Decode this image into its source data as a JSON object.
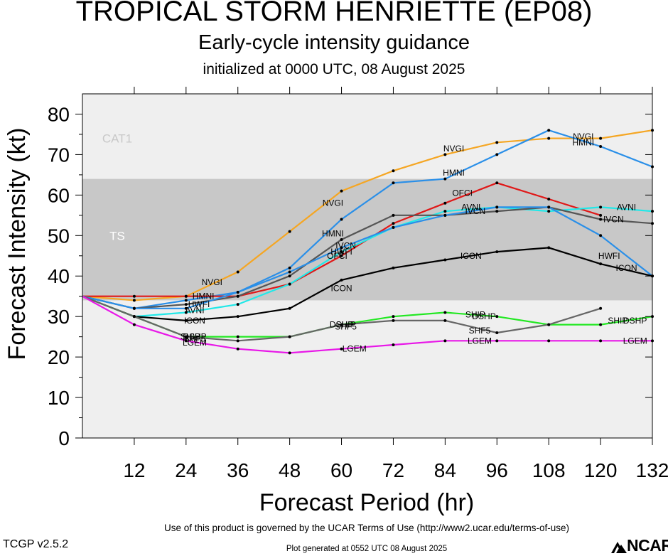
{
  "header": {
    "title": "TROPICAL STORM HENRIETTE (EP08)",
    "subtitle": "Early-cycle intensity guidance",
    "init": "initialized at 0000 UTC, 08 August 2025"
  },
  "footer": {
    "terms": "Use of this product is governed by the UCAR Terms of Use (http://www2.ucar.edu/terms-of-use)",
    "version": "TCGP v2.5.2",
    "generated": "Plot generated at 0552 UTC   08 August 2025",
    "logo_text": "NCAR"
  },
  "chart_data": {
    "type": "line",
    "xlabel": "Forecast Period (hr)",
    "ylabel": "Forecast Intensity (kt)",
    "xlim": [
      0,
      132
    ],
    "ylim": [
      0,
      85
    ],
    "xticks": [
      12,
      24,
      36,
      48,
      60,
      72,
      84,
      96,
      108,
      120,
      132
    ],
    "yticks": [
      0,
      10,
      20,
      30,
      40,
      50,
      60,
      70,
      80
    ],
    "bands": [
      {
        "label": "TS",
        "from": 34,
        "to": 64,
        "color": "#c8c8c8",
        "label_y": 50
      },
      {
        "label": "CAT1",
        "from": 64,
        "to": 85,
        "color": "#efefef",
        "label_y": 74
      }
    ],
    "series": [
      {
        "name": "NVGI",
        "color": "#f5a623",
        "points": [
          [
            0,
            35
          ],
          [
            12,
            34
          ],
          [
            24,
            35
          ],
          [
            36,
            41
          ],
          [
            48,
            51
          ],
          [
            60,
            61
          ],
          [
            72,
            66
          ],
          [
            84,
            70
          ],
          [
            96,
            73
          ],
          [
            108,
            74
          ],
          [
            120,
            74
          ],
          [
            132,
            76
          ]
        ],
        "labels": [
          [
            30,
            38.5
          ],
          [
            58,
            58
          ],
          [
            86,
            71.5
          ],
          [
            116,
            74.5
          ]
        ]
      },
      {
        "name": "HMNI",
        "color": "#2a8fe8",
        "points": [
          [
            0,
            35
          ],
          [
            12,
            32
          ],
          [
            24,
            34
          ],
          [
            36,
            36
          ],
          [
            48,
            42
          ],
          [
            60,
            54
          ],
          [
            72,
            63
          ],
          [
            84,
            64
          ],
          [
            96,
            70
          ],
          [
            108,
            76
          ],
          [
            120,
            72
          ],
          [
            132,
            67
          ]
        ],
        "labels": [
          [
            28,
            35
          ],
          [
            58,
            50.5
          ],
          [
            86,
            65.5
          ],
          [
            116,
            73
          ]
        ]
      },
      {
        "name": "OFCI",
        "color": "#e01818",
        "points": [
          [
            0,
            35
          ],
          [
            12,
            35
          ],
          [
            24,
            35
          ],
          [
            36,
            35
          ],
          [
            48,
            38
          ],
          [
            60,
            45
          ],
          [
            72,
            53
          ],
          [
            84,
            58
          ],
          [
            96,
            63
          ],
          [
            108,
            59
          ],
          [
            120,
            55
          ]
        ],
        "labels": [
          [
            59,
            45
          ],
          [
            88,
            60.5
          ]
        ]
      },
      {
        "name": "AVNI",
        "color": "#22e8e8",
        "points": [
          [
            0,
            35
          ],
          [
            12,
            30
          ],
          [
            24,
            31
          ],
          [
            36,
            33
          ],
          [
            48,
            38
          ],
          [
            60,
            46
          ],
          [
            72,
            52
          ],
          [
            84,
            56
          ],
          [
            96,
            57
          ],
          [
            108,
            56
          ],
          [
            120,
            57
          ],
          [
            132,
            56
          ]
        ],
        "labels": [
          [
            26,
            31.5
          ],
          [
            90,
            57
          ],
          [
            126,
            57
          ]
        ]
      },
      {
        "name": "IVCN",
        "color": "#555555",
        "points": [
          [
            0,
            35
          ],
          [
            12,
            32
          ],
          [
            24,
            33
          ],
          [
            36,
            35
          ],
          [
            48,
            40
          ],
          [
            60,
            49
          ],
          [
            72,
            55
          ],
          [
            84,
            55
          ],
          [
            96,
            56
          ],
          [
            108,
            57
          ],
          [
            120,
            54
          ],
          [
            132,
            53
          ]
        ],
        "labels": [
          [
            61,
            47.5
          ],
          [
            91,
            56
          ],
          [
            123,
            54
          ]
        ]
      },
      {
        "name": "HWFI",
        "color": "#2a8fe8",
        "points": [
          [
            0,
            35
          ],
          [
            12,
            32
          ],
          [
            24,
            32
          ],
          [
            36,
            36
          ],
          [
            48,
            41
          ],
          [
            60,
            47
          ],
          [
            72,
            52
          ],
          [
            84,
            55
          ],
          [
            96,
            57
          ],
          [
            108,
            57
          ],
          [
            120,
            50
          ],
          [
            132,
            40
          ]
        ],
        "labels": [
          [
            27,
            33
          ],
          [
            60,
            46
          ],
          [
            122,
            45
          ]
        ]
      },
      {
        "name": "ICON",
        "color": "#000000",
        "points": [
          [
            0,
            35
          ],
          [
            12,
            30
          ],
          [
            24,
            29
          ],
          [
            36,
            30
          ],
          [
            48,
            32
          ],
          [
            60,
            39
          ],
          [
            72,
            42
          ],
          [
            84,
            44
          ],
          [
            96,
            46
          ],
          [
            108,
            47
          ],
          [
            120,
            43
          ],
          [
            132,
            40
          ]
        ],
        "labels": [
          [
            26,
            29
          ],
          [
            60,
            37
          ],
          [
            90,
            45
          ],
          [
            126,
            42
          ]
        ]
      },
      {
        "name": "DSHP",
        "color": "#22e822",
        "points": [
          [
            0,
            35
          ],
          [
            12,
            30
          ],
          [
            24,
            25
          ],
          [
            36,
            25
          ],
          [
            48,
            25
          ],
          [
            60,
            28
          ],
          [
            72,
            30
          ],
          [
            84,
            31
          ],
          [
            96,
            30
          ],
          [
            108,
            28
          ],
          [
            120,
            28
          ],
          [
            132,
            30
          ]
        ],
        "labels": [
          [
            26,
            25
          ],
          [
            60,
            28
          ],
          [
            93,
            30
          ],
          [
            128,
            29
          ]
        ]
      },
      {
        "name": "SHIP",
        "color": "#22e822",
        "points": [],
        "labels": [
          [
            25,
            25
          ],
          [
            61,
            28
          ],
          [
            91,
            30.5
          ],
          [
            124,
            29
          ]
        ]
      },
      {
        "name": "SHF5",
        "color": "#666666",
        "points": [
          [
            0,
            35
          ],
          [
            12,
            30
          ],
          [
            24,
            25
          ],
          [
            36,
            24
          ],
          [
            48,
            25
          ],
          [
            60,
            28
          ],
          [
            72,
            29
          ],
          [
            84,
            29
          ],
          [
            96,
            26
          ],
          [
            108,
            28
          ],
          [
            120,
            32
          ]
        ],
        "labels": [
          [
            26,
            24.5
          ],
          [
            61,
            27.5
          ],
          [
            92,
            26.5
          ]
        ]
      },
      {
        "name": "LGEM",
        "color": "#e818e8",
        "points": [
          [
            0,
            35
          ],
          [
            12,
            28
          ],
          [
            24,
            24
          ],
          [
            36,
            22
          ],
          [
            48,
            21
          ],
          [
            60,
            22
          ],
          [
            72,
            23
          ],
          [
            84,
            24
          ],
          [
            96,
            24
          ],
          [
            108,
            24
          ],
          [
            120,
            24
          ],
          [
            132,
            24
          ]
        ],
        "labels": [
          [
            26,
            23.5
          ],
          [
            63,
            22
          ],
          [
            92,
            24
          ],
          [
            128,
            24
          ]
        ]
      }
    ]
  }
}
